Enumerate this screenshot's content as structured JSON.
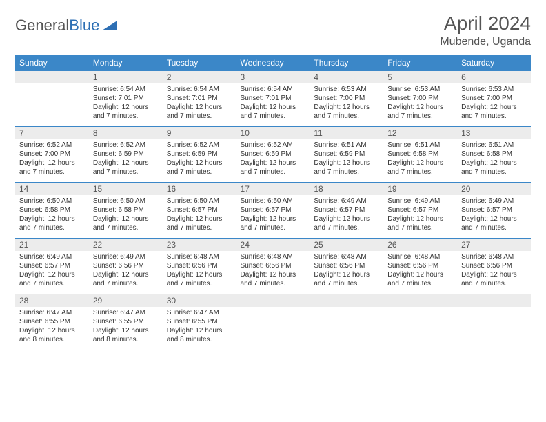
{
  "logo": {
    "part1": "General",
    "part2": "Blue"
  },
  "title": {
    "month": "April 2024",
    "location": "Mubende, Uganda"
  },
  "colors": {
    "header_bg": "#3b87c8",
    "header_text": "#ffffff",
    "daynum_bg": "#ececec",
    "border": "#3b87c8",
    "text": "#333333",
    "title_text": "#555555"
  },
  "weekdays": [
    "Sunday",
    "Monday",
    "Tuesday",
    "Wednesday",
    "Thursday",
    "Friday",
    "Saturday"
  ],
  "weeks": [
    [
      {
        "num": "",
        "lines": []
      },
      {
        "num": "1",
        "lines": [
          "Sunrise: 6:54 AM",
          "Sunset: 7:01 PM",
          "Daylight: 12 hours",
          "and 7 minutes."
        ]
      },
      {
        "num": "2",
        "lines": [
          "Sunrise: 6:54 AM",
          "Sunset: 7:01 PM",
          "Daylight: 12 hours",
          "and 7 minutes."
        ]
      },
      {
        "num": "3",
        "lines": [
          "Sunrise: 6:54 AM",
          "Sunset: 7:01 PM",
          "Daylight: 12 hours",
          "and 7 minutes."
        ]
      },
      {
        "num": "4",
        "lines": [
          "Sunrise: 6:53 AM",
          "Sunset: 7:00 PM",
          "Daylight: 12 hours",
          "and 7 minutes."
        ]
      },
      {
        "num": "5",
        "lines": [
          "Sunrise: 6:53 AM",
          "Sunset: 7:00 PM",
          "Daylight: 12 hours",
          "and 7 minutes."
        ]
      },
      {
        "num": "6",
        "lines": [
          "Sunrise: 6:53 AM",
          "Sunset: 7:00 PM",
          "Daylight: 12 hours",
          "and 7 minutes."
        ]
      }
    ],
    [
      {
        "num": "7",
        "lines": [
          "Sunrise: 6:52 AM",
          "Sunset: 7:00 PM",
          "Daylight: 12 hours",
          "and 7 minutes."
        ]
      },
      {
        "num": "8",
        "lines": [
          "Sunrise: 6:52 AM",
          "Sunset: 6:59 PM",
          "Daylight: 12 hours",
          "and 7 minutes."
        ]
      },
      {
        "num": "9",
        "lines": [
          "Sunrise: 6:52 AM",
          "Sunset: 6:59 PM",
          "Daylight: 12 hours",
          "and 7 minutes."
        ]
      },
      {
        "num": "10",
        "lines": [
          "Sunrise: 6:52 AM",
          "Sunset: 6:59 PM",
          "Daylight: 12 hours",
          "and 7 minutes."
        ]
      },
      {
        "num": "11",
        "lines": [
          "Sunrise: 6:51 AM",
          "Sunset: 6:59 PM",
          "Daylight: 12 hours",
          "and 7 minutes."
        ]
      },
      {
        "num": "12",
        "lines": [
          "Sunrise: 6:51 AM",
          "Sunset: 6:58 PM",
          "Daylight: 12 hours",
          "and 7 minutes."
        ]
      },
      {
        "num": "13",
        "lines": [
          "Sunrise: 6:51 AM",
          "Sunset: 6:58 PM",
          "Daylight: 12 hours",
          "and 7 minutes."
        ]
      }
    ],
    [
      {
        "num": "14",
        "lines": [
          "Sunrise: 6:50 AM",
          "Sunset: 6:58 PM",
          "Daylight: 12 hours",
          "and 7 minutes."
        ]
      },
      {
        "num": "15",
        "lines": [
          "Sunrise: 6:50 AM",
          "Sunset: 6:58 PM",
          "Daylight: 12 hours",
          "and 7 minutes."
        ]
      },
      {
        "num": "16",
        "lines": [
          "Sunrise: 6:50 AM",
          "Sunset: 6:57 PM",
          "Daylight: 12 hours",
          "and 7 minutes."
        ]
      },
      {
        "num": "17",
        "lines": [
          "Sunrise: 6:50 AM",
          "Sunset: 6:57 PM",
          "Daylight: 12 hours",
          "and 7 minutes."
        ]
      },
      {
        "num": "18",
        "lines": [
          "Sunrise: 6:49 AM",
          "Sunset: 6:57 PM",
          "Daylight: 12 hours",
          "and 7 minutes."
        ]
      },
      {
        "num": "19",
        "lines": [
          "Sunrise: 6:49 AM",
          "Sunset: 6:57 PM",
          "Daylight: 12 hours",
          "and 7 minutes."
        ]
      },
      {
        "num": "20",
        "lines": [
          "Sunrise: 6:49 AM",
          "Sunset: 6:57 PM",
          "Daylight: 12 hours",
          "and 7 minutes."
        ]
      }
    ],
    [
      {
        "num": "21",
        "lines": [
          "Sunrise: 6:49 AM",
          "Sunset: 6:57 PM",
          "Daylight: 12 hours",
          "and 7 minutes."
        ]
      },
      {
        "num": "22",
        "lines": [
          "Sunrise: 6:49 AM",
          "Sunset: 6:56 PM",
          "Daylight: 12 hours",
          "and 7 minutes."
        ]
      },
      {
        "num": "23",
        "lines": [
          "Sunrise: 6:48 AM",
          "Sunset: 6:56 PM",
          "Daylight: 12 hours",
          "and 7 minutes."
        ]
      },
      {
        "num": "24",
        "lines": [
          "Sunrise: 6:48 AM",
          "Sunset: 6:56 PM",
          "Daylight: 12 hours",
          "and 7 minutes."
        ]
      },
      {
        "num": "25",
        "lines": [
          "Sunrise: 6:48 AM",
          "Sunset: 6:56 PM",
          "Daylight: 12 hours",
          "and 7 minutes."
        ]
      },
      {
        "num": "26",
        "lines": [
          "Sunrise: 6:48 AM",
          "Sunset: 6:56 PM",
          "Daylight: 12 hours",
          "and 7 minutes."
        ]
      },
      {
        "num": "27",
        "lines": [
          "Sunrise: 6:48 AM",
          "Sunset: 6:56 PM",
          "Daylight: 12 hours",
          "and 7 minutes."
        ]
      }
    ],
    [
      {
        "num": "28",
        "lines": [
          "Sunrise: 6:47 AM",
          "Sunset: 6:55 PM",
          "Daylight: 12 hours",
          "and 8 minutes."
        ]
      },
      {
        "num": "29",
        "lines": [
          "Sunrise: 6:47 AM",
          "Sunset: 6:55 PM",
          "Daylight: 12 hours",
          "and 8 minutes."
        ]
      },
      {
        "num": "30",
        "lines": [
          "Sunrise: 6:47 AM",
          "Sunset: 6:55 PM",
          "Daylight: 12 hours",
          "and 8 minutes."
        ]
      },
      {
        "num": "",
        "lines": []
      },
      {
        "num": "",
        "lines": []
      },
      {
        "num": "",
        "lines": []
      },
      {
        "num": "",
        "lines": []
      }
    ]
  ]
}
